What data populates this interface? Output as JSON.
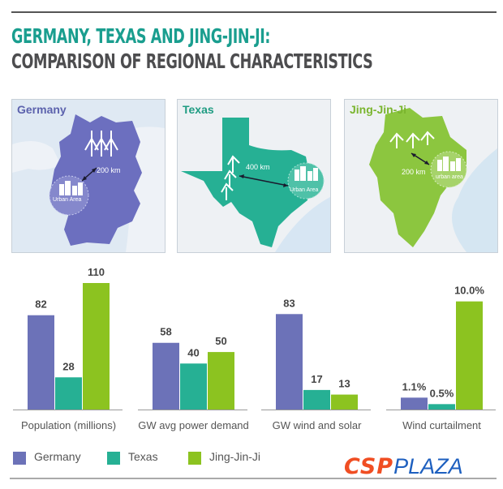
{
  "title": {
    "line1": "GERMANY, TEXAS AND JING-JIN-JI:",
    "line2": "COMPARISON OF REGIONAL CHARACTERISTICS"
  },
  "panels": [
    {
      "label": "Germany",
      "distance": "200 km",
      "urban_label": "Urban Area",
      "color": "#6c6fbf"
    },
    {
      "label": "Texas",
      "distance": "400 km",
      "urban_label": "Urban Area",
      "color": "#26b094"
    },
    {
      "label": "Jing-Jin-Ji",
      "distance": "200 km",
      "urban_label": "urban area",
      "color": "#8cc63f"
    }
  ],
  "colors": {
    "germany": "#6c72b8",
    "texas": "#26b094",
    "jingjinji": "#8cc320",
    "title_accent": "#1a9e8f",
    "title_dark": "#4d4d4f"
  },
  "chart_data": {
    "type": "bar",
    "series_names": [
      "Germany",
      "Texas",
      "Jing-Jin-Ji"
    ],
    "groups": [
      {
        "category": "Population (millions)",
        "values": [
          82,
          28,
          110
        ],
        "labels": [
          "82",
          "28",
          "110"
        ],
        "scale_max": 110
      },
      {
        "category": "GW avg power demand",
        "values": [
          58,
          40,
          50
        ],
        "labels": [
          "58",
          "40",
          "50"
        ],
        "scale_max": 110
      },
      {
        "category": "GW wind and solar",
        "values": [
          83,
          17,
          13
        ],
        "labels": [
          "83",
          "17",
          "13"
        ],
        "scale_max": 110
      },
      {
        "category": "Wind curtailment",
        "values": [
          1.1,
          0.5,
          10.0
        ],
        "labels": [
          "1.1%",
          "0.5%",
          "10.0%"
        ],
        "scale_max": 11.7
      }
    ],
    "grid": false,
    "legend_position": "bottom-left"
  },
  "legend": [
    {
      "label": "Germany"
    },
    {
      "label": "Texas"
    },
    {
      "label": "Jing-Jin-Ji"
    }
  ],
  "logo": {
    "part1": "CSP",
    "part2": "PLAZA"
  }
}
